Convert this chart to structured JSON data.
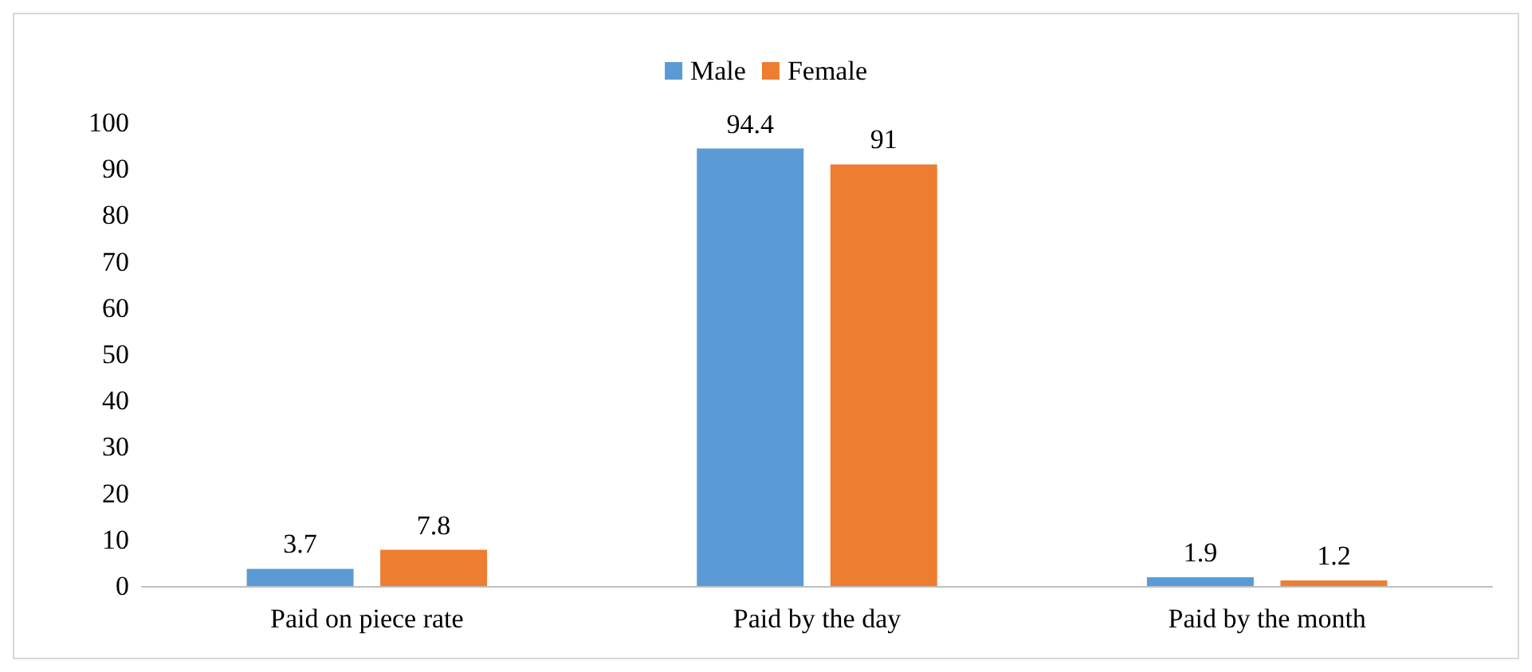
{
  "chart_data": {
    "type": "bar",
    "categories": [
      "Paid on piece rate",
      "Paid by the day",
      "Paid by the month"
    ],
    "series": [
      {
        "name": "Male",
        "color": "#5b9bd5",
        "values": [
          3.7,
          94.4,
          1.9
        ]
      },
      {
        "name": "Female",
        "color": "#ed7d31",
        "values": [
          7.8,
          91,
          1.2
        ]
      }
    ],
    "ylim": [
      0,
      100
    ],
    "yticks": [
      0,
      10,
      20,
      30,
      40,
      50,
      60,
      70,
      80,
      90,
      100
    ],
    "grid": false,
    "legend": "top",
    "data_labels": true
  }
}
